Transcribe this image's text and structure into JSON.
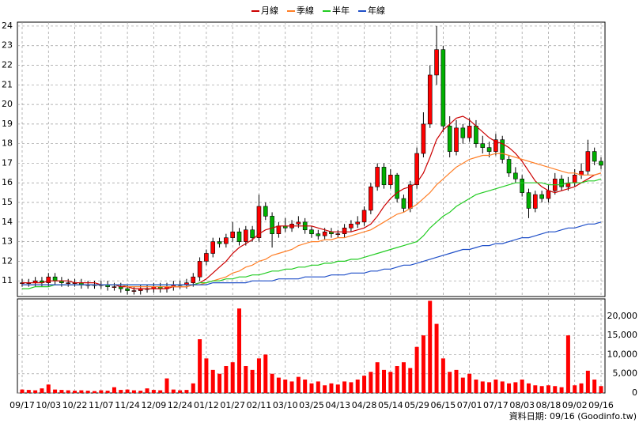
{
  "chart_data": {
    "type": "candlestick",
    "categories": [
      "09/17",
      null,
      null,
      null,
      "10/03",
      null,
      null,
      null,
      "10/22",
      null,
      null,
      null,
      "11/07",
      null,
      null,
      null,
      "11/24",
      null,
      null,
      null,
      "12/09",
      null,
      null,
      null,
      "12/24",
      null,
      null,
      null,
      "01/12",
      null,
      null,
      null,
      "01/27",
      null,
      null,
      null,
      "02/11",
      null,
      null,
      null,
      "03/10",
      null,
      null,
      null,
      "03/25",
      null,
      null,
      null,
      "04/13",
      null,
      null,
      null,
      "04/28",
      null,
      null,
      null,
      "05/14",
      null,
      null,
      null,
      "05/29",
      null,
      null,
      null,
      "06/15",
      null,
      null,
      null,
      "07/01",
      null,
      null,
      null,
      "07/17",
      null,
      null,
      null,
      "08/03",
      null,
      null,
      null,
      "08/18",
      null,
      null,
      null,
      "09/02",
      null,
      null,
      null,
      "09/16"
    ],
    "open": [
      10.9,
      10.9,
      10.9,
      11.0,
      10.9,
      11.2,
      11.0,
      10.9,
      10.9,
      10.9,
      10.8,
      10.8,
      10.8,
      10.8,
      10.7,
      10.7,
      10.6,
      10.5,
      10.5,
      10.6,
      10.6,
      10.7,
      10.6,
      10.7,
      10.8,
      10.8,
      10.9,
      11.2,
      12.0,
      12.4,
      13.0,
      12.9,
      13.2,
      13.5,
      13.0,
      13.6,
      13.2,
      14.8,
      14.3,
      13.4,
      13.8,
      13.7,
      13.9,
      14.0,
      13.6,
      13.4,
      13.3,
      13.5,
      13.4,
      13.4,
      13.7,
      13.9,
      14.0,
      14.6,
      15.8,
      16.8,
      15.9,
      16.4,
      15.2,
      14.7,
      15.9,
      17.5,
      19.0,
      21.5,
      22.8,
      18.9,
      17.6,
      18.8,
      18.3,
      18.9,
      18.0,
      17.8,
      17.6,
      18.2,
      17.2,
      16.5,
      16.2,
      15.5,
      14.7,
      15.4,
      15.2,
      15.6,
      16.2,
      15.8,
      16.0,
      16.4,
      16.6,
      17.6,
      17.1
    ],
    "high": [
      11.1,
      11.1,
      11.2,
      11.2,
      11.4,
      11.4,
      11.2,
      11.1,
      11.1,
      11.1,
      11.0,
      11.0,
      11.0,
      11.0,
      10.9,
      10.9,
      10.8,
      10.7,
      10.8,
      10.8,
      10.9,
      10.9,
      10.9,
      11.0,
      11.0,
      11.1,
      11.4,
      12.2,
      12.6,
      13.2,
      13.2,
      13.4,
      14.0,
      13.7,
      13.8,
      13.8,
      15.4,
      15.0,
      14.5,
      14.0,
      14.2,
      14.1,
      14.3,
      14.2,
      13.8,
      13.6,
      13.7,
      13.7,
      13.6,
      13.9,
      14.1,
      14.3,
      14.8,
      16.0,
      17.0,
      17.0,
      16.7,
      16.5,
      15.4,
      16.1,
      17.8,
      19.6,
      22.0,
      24.0,
      23.0,
      19.4,
      19.2,
      19.0,
      19.3,
      19.2,
      18.4,
      18.1,
      18.5,
      18.4,
      17.4,
      16.8,
      16.4,
      15.7,
      15.6,
      15.6,
      15.9,
      16.5,
      16.4,
      16.3,
      16.7,
      17.0,
      18.2,
      17.8,
      17.3
    ],
    "low": [
      10.7,
      10.7,
      10.7,
      10.7,
      10.7,
      10.8,
      10.7,
      10.7,
      10.7,
      10.6,
      10.6,
      10.6,
      10.6,
      10.5,
      10.5,
      10.4,
      10.3,
      10.3,
      10.3,
      10.4,
      10.4,
      10.4,
      10.4,
      10.5,
      10.6,
      10.6,
      10.7,
      11.0,
      11.8,
      12.2,
      12.7,
      12.7,
      13.0,
      12.8,
      12.8,
      13.0,
      13.0,
      14.1,
      12.7,
      13.2,
      13.5,
      13.5,
      13.7,
      13.4,
      13.2,
      13.1,
      13.1,
      13.2,
      13.2,
      13.2,
      13.5,
      13.7,
      13.8,
      14.4,
      15.6,
      15.7,
      15.7,
      15.0,
      14.5,
      14.5,
      15.7,
      17.3,
      18.8,
      21.0,
      18.6,
      17.3,
      17.4,
      18.0,
      18.1,
      17.8,
      17.5,
      17.3,
      17.4,
      17.0,
      16.3,
      16.0,
      15.3,
      14.2,
      14.5,
      15.0,
      15.0,
      15.4,
      15.6,
      15.6,
      15.8,
      16.2,
      16.4,
      16.9,
      16.7
    ],
    "close": [
      10.9,
      10.9,
      11.0,
      10.9,
      11.2,
      11.0,
      10.9,
      10.9,
      10.9,
      10.8,
      10.8,
      10.8,
      10.8,
      10.7,
      10.7,
      10.6,
      10.5,
      10.5,
      10.6,
      10.6,
      10.7,
      10.6,
      10.7,
      10.8,
      10.8,
      10.9,
      11.2,
      12.0,
      12.4,
      13.0,
      12.9,
      13.2,
      13.5,
      13.0,
      13.6,
      13.2,
      14.8,
      14.3,
      13.4,
      13.8,
      13.7,
      13.9,
      14.0,
      13.6,
      13.4,
      13.3,
      13.5,
      13.4,
      13.4,
      13.7,
      13.9,
      14.0,
      14.6,
      15.8,
      16.8,
      15.9,
      16.4,
      15.2,
      14.7,
      15.9,
      17.5,
      19.0,
      21.5,
      22.8,
      18.9,
      17.6,
      18.8,
      18.3,
      18.9,
      18.0,
      17.8,
      17.6,
      18.2,
      17.2,
      16.5,
      16.2,
      15.5,
      14.7,
      15.4,
      15.2,
      15.6,
      16.2,
      15.8,
      16.0,
      16.4,
      16.6,
      17.6,
      17.1,
      16.9
    ],
    "up_color": "#ff0000",
    "down_color": "#00b000",
    "volume": [
      900,
      800,
      700,
      1200,
      2200,
      900,
      800,
      700,
      600,
      700,
      600,
      500,
      700,
      600,
      1500,
      800,
      900,
      700,
      600,
      1200,
      800,
      700,
      3800,
      900,
      700,
      800,
      2500,
      14000,
      9000,
      6000,
      5000,
      7000,
      8000,
      22000,
      7000,
      6000,
      9000,
      10000,
      5000,
      4000,
      3500,
      3000,
      4200,
      3500,
      2500,
      3000,
      2000,
      2500,
      2200,
      3000,
      2800,
      3500,
      4500,
      5500,
      8000,
      6000,
      5500,
      7000,
      8000,
      6500,
      12000,
      15000,
      24000,
      18000,
      9000,
      5500,
      6000,
      4000,
      5000,
      3500,
      3000,
      2800,
      3500,
      3000,
      2500,
      2800,
      3500,
      2500,
      2000,
      1800,
      2000,
      1800,
      1500,
      15000,
      2000,
      2500,
      5800,
      3500,
      1800
    ],
    "volume_color": "#ff0000",
    "series": [
      {
        "name": "月線",
        "color": "#cc0000",
        "values": [
          10.9,
          10.9,
          10.9,
          10.9,
          11.0,
          11.0,
          11.0,
          11.0,
          10.9,
          10.9,
          10.9,
          10.9,
          10.8,
          10.8,
          10.8,
          10.7,
          10.7,
          10.6,
          10.6,
          10.6,
          10.6,
          10.6,
          10.6,
          10.7,
          10.7,
          10.7,
          10.8,
          10.9,
          11.1,
          11.4,
          11.7,
          12.0,
          12.4,
          12.7,
          12.9,
          13.1,
          13.4,
          13.6,
          13.7,
          13.8,
          13.8,
          13.8,
          13.8,
          13.8,
          13.8,
          13.7,
          13.6,
          13.5,
          13.5,
          13.5,
          13.5,
          13.6,
          13.7,
          13.9,
          14.3,
          14.8,
          15.2,
          15.5,
          15.7,
          15.8,
          16.0,
          16.5,
          17.3,
          18.2,
          18.7,
          19.0,
          19.3,
          19.4,
          19.2,
          18.9,
          18.6,
          18.3,
          18.1,
          18.0,
          17.8,
          17.5,
          17.1,
          16.6,
          16.1,
          15.8,
          15.6,
          15.5,
          15.6,
          15.7,
          15.8,
          16.0,
          16.2,
          16.4,
          16.5
        ]
      },
      {
        "name": "季線",
        "color": "#ff7f27",
        "values": [
          10.8,
          10.8,
          10.8,
          10.8,
          10.8,
          10.8,
          10.8,
          10.8,
          10.8,
          10.8,
          10.8,
          10.8,
          10.8,
          10.8,
          10.8,
          10.8,
          10.7,
          10.7,
          10.7,
          10.7,
          10.7,
          10.7,
          10.7,
          10.7,
          10.7,
          10.7,
          10.8,
          10.8,
          10.9,
          11.0,
          11.1,
          11.2,
          11.4,
          11.5,
          11.7,
          11.8,
          12.0,
          12.1,
          12.3,
          12.4,
          12.5,
          12.6,
          12.8,
          12.9,
          13.0,
          13.0,
          13.1,
          13.1,
          13.2,
          13.2,
          13.3,
          13.4,
          13.5,
          13.6,
          13.8,
          14.0,
          14.2,
          14.4,
          14.5,
          14.7,
          14.9,
          15.2,
          15.5,
          15.9,
          16.2,
          16.5,
          16.8,
          17.0,
          17.2,
          17.3,
          17.4,
          17.4,
          17.5,
          17.5,
          17.4,
          17.3,
          17.2,
          17.1,
          17.0,
          16.9,
          16.8,
          16.7,
          16.6,
          16.5,
          16.5,
          16.4,
          16.4,
          16.4,
          16.5
        ]
      },
      {
        "name": "半年",
        "color": "#22cc22",
        "values": [
          10.6,
          10.6,
          10.7,
          10.7,
          10.7,
          10.8,
          10.8,
          10.8,
          10.8,
          10.8,
          10.8,
          10.8,
          10.8,
          10.8,
          10.8,
          10.8,
          10.8,
          10.8,
          10.8,
          10.8,
          10.8,
          10.8,
          10.8,
          10.8,
          10.8,
          10.8,
          10.8,
          10.9,
          10.9,
          11.0,
          11.0,
          11.1,
          11.1,
          11.2,
          11.2,
          11.3,
          11.3,
          11.4,
          11.5,
          11.5,
          11.6,
          11.6,
          11.7,
          11.7,
          11.8,
          11.8,
          11.9,
          11.9,
          12.0,
          12.0,
          12.1,
          12.1,
          12.2,
          12.3,
          12.4,
          12.5,
          12.6,
          12.7,
          12.8,
          12.9,
          13.0,
          13.3,
          13.7,
          14.0,
          14.3,
          14.5,
          14.8,
          15.0,
          15.2,
          15.4,
          15.5,
          15.6,
          15.7,
          15.8,
          15.9,
          16.0,
          16.0,
          16.0,
          16.0,
          16.0,
          15.9,
          15.9,
          15.9,
          16.0,
          16.0,
          16.0,
          16.1,
          16.1,
          16.2
        ]
      },
      {
        "name": "年線",
        "color": "#1f4fc8",
        "values": [
          10.8,
          10.8,
          10.8,
          10.8,
          10.8,
          10.8,
          10.8,
          10.8,
          10.8,
          10.8,
          10.8,
          10.8,
          10.8,
          10.8,
          10.8,
          10.8,
          10.8,
          10.8,
          10.8,
          10.8,
          10.8,
          10.8,
          10.8,
          10.8,
          10.8,
          10.8,
          10.8,
          10.8,
          10.8,
          10.9,
          10.9,
          10.9,
          10.9,
          10.9,
          10.9,
          11.0,
          11.0,
          11.0,
          11.0,
          11.1,
          11.1,
          11.1,
          11.1,
          11.2,
          11.2,
          11.2,
          11.2,
          11.3,
          11.3,
          11.3,
          11.4,
          11.4,
          11.4,
          11.5,
          11.5,
          11.6,
          11.6,
          11.7,
          11.8,
          11.8,
          11.9,
          12.0,
          12.1,
          12.2,
          12.3,
          12.4,
          12.5,
          12.6,
          12.6,
          12.7,
          12.8,
          12.8,
          12.9,
          12.9,
          13.0,
          13.1,
          13.2,
          13.2,
          13.3,
          13.4,
          13.5,
          13.5,
          13.6,
          13.7,
          13.7,
          13.8,
          13.9,
          13.9,
          14.0
        ]
      }
    ],
    "ylim": [
      10.2,
      24.2
    ],
    "yticks": [
      11,
      12,
      13,
      14,
      15,
      16,
      17,
      18,
      19,
      20,
      21,
      22,
      23,
      24
    ],
    "y2lim": [
      0,
      24500
    ],
    "y2ticks": [
      0,
      {
        "value": 5000,
        "label": "5,000"
      },
      {
        "value": 10000,
        "label": "10,000"
      },
      {
        "value": 15000,
        "label": "15,000"
      },
      {
        "value": 20000,
        "label": "20,000"
      }
    ],
    "grid": true,
    "footer": "資料日期: 09/16  (Goodinfo.tw)"
  }
}
